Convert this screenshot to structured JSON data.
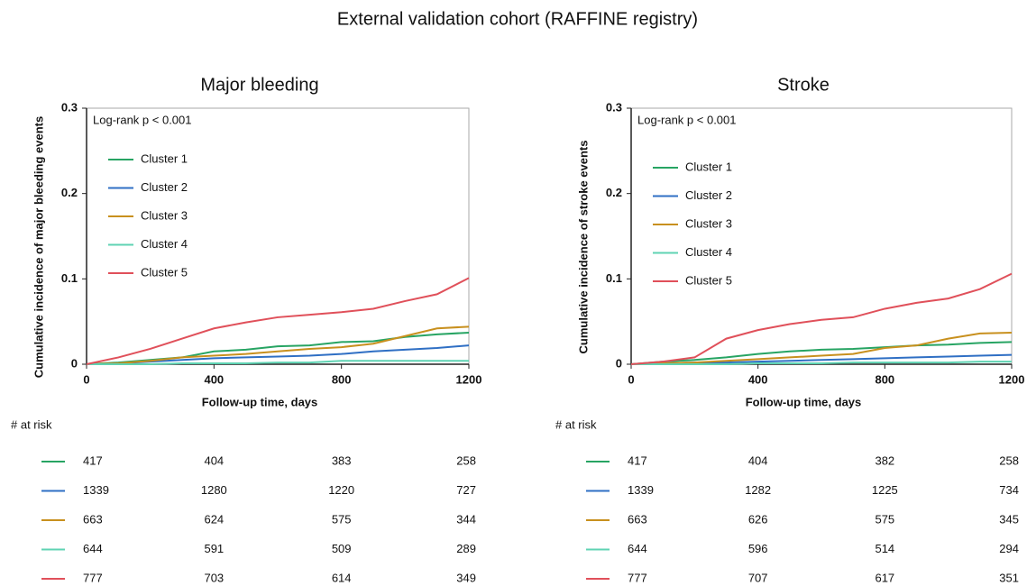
{
  "title": "External validation cohort (RAFFINE registry)",
  "chart_data": [
    {
      "type": "line",
      "title": "Major bleeding",
      "annotation": "Log-rank p < 0.001",
      "xlabel": "Follow-up time, days",
      "ylabel": "Cumulative incidence of major bleeding events",
      "x": [
        0,
        100,
        200,
        300,
        400,
        500,
        600,
        700,
        800,
        900,
        1000,
        1100,
        1200
      ],
      "xlim": [
        0,
        1200
      ],
      "xticks": [
        0,
        400,
        800,
        1200
      ],
      "ylim": [
        0,
        0.3
      ],
      "yticks": [
        0,
        0.1,
        0.2,
        0.3
      ],
      "series": [
        {
          "name": "Cluster 1",
          "color": "#27a463",
          "values": [
            0,
            0.002,
            0.005,
            0.008,
            0.015,
            0.017,
            0.021,
            0.022,
            0.026,
            0.027,
            0.032,
            0.035,
            0.037
          ]
        },
        {
          "name": "Cluster 2",
          "color": "#2f6fc4",
          "values": [
            0,
            0.001,
            0.003,
            0.005,
            0.007,
            0.008,
            0.009,
            0.01,
            0.012,
            0.015,
            0.017,
            0.019,
            0.022
          ]
        },
        {
          "name": "Cluster 3",
          "color": "#c8901e",
          "values": [
            0,
            0.001,
            0.004,
            0.008,
            0.01,
            0.012,
            0.015,
            0.018,
            0.02,
            0.024,
            0.033,
            0.042,
            0.044
          ]
        },
        {
          "name": "Cluster 4",
          "color": "#5fd3b3",
          "values": [
            0,
            0,
            0,
            0.001,
            0.001,
            0.001,
            0.002,
            0.002,
            0.004,
            0.004,
            0.004,
            0.004,
            0.004
          ]
        },
        {
          "name": "Cluster 5",
          "color": "#e0505a",
          "values": [
            0,
            0.008,
            0.018,
            0.03,
            0.042,
            0.049,
            0.055,
            0.058,
            0.061,
            0.065,
            0.074,
            0.082,
            0.101
          ]
        }
      ],
      "at_risk_label": "# at risk",
      "at_risk": [
        [
          417,
          404,
          383,
          258
        ],
        [
          1339,
          1280,
          1220,
          727
        ],
        [
          663,
          624,
          575,
          344
        ],
        [
          644,
          591,
          509,
          289
        ],
        [
          777,
          703,
          614,
          349
        ]
      ]
    },
    {
      "type": "line",
      "title": "Stroke",
      "annotation": "Log-rank p < 0.001",
      "xlabel": "Follow-up time, days",
      "ylabel": "Cumulative incidence of stroke events",
      "x": [
        0,
        100,
        200,
        300,
        400,
        500,
        600,
        700,
        800,
        900,
        1000,
        1100,
        1200
      ],
      "xlim": [
        0,
        1200
      ],
      "xticks": [
        0,
        400,
        800,
        1200
      ],
      "ylim": [
        0,
        0.3
      ],
      "yticks": [
        0,
        0.1,
        0.2,
        0.3
      ],
      "series": [
        {
          "name": "Cluster 1",
          "color": "#27a463",
          "values": [
            0,
            0.003,
            0.005,
            0.008,
            0.012,
            0.015,
            0.017,
            0.018,
            0.02,
            0.022,
            0.023,
            0.025,
            0.026
          ]
        },
        {
          "name": "Cluster 2",
          "color": "#2f6fc4",
          "values": [
            0,
            0.001,
            0.002,
            0.002,
            0.003,
            0.004,
            0.005,
            0.006,
            0.007,
            0.008,
            0.009,
            0.01,
            0.011
          ]
        },
        {
          "name": "Cluster 3",
          "color": "#c8901e",
          "values": [
            0,
            0.001,
            0.002,
            0.004,
            0.006,
            0.008,
            0.01,
            0.012,
            0.019,
            0.022,
            0.03,
            0.036,
            0.037
          ]
        },
        {
          "name": "Cluster 4",
          "color": "#5fd3b3",
          "values": [
            0,
            0,
            0,
            0,
            0.001,
            0.001,
            0.001,
            0.002,
            0.002,
            0.002,
            0.002,
            0.003,
            0.003
          ]
        },
        {
          "name": "Cluster 5",
          "color": "#e0505a",
          "values": [
            0,
            0.003,
            0.008,
            0.03,
            0.04,
            0.047,
            0.052,
            0.055,
            0.065,
            0.072,
            0.077,
            0.088,
            0.106
          ]
        }
      ],
      "at_risk_label": "# at risk",
      "at_risk": [
        [
          417,
          404,
          382,
          258
        ],
        [
          1339,
          1282,
          1225,
          734
        ],
        [
          663,
          626,
          575,
          345
        ],
        [
          644,
          596,
          514,
          294
        ],
        [
          777,
          707,
          617,
          351
        ]
      ]
    }
  ]
}
